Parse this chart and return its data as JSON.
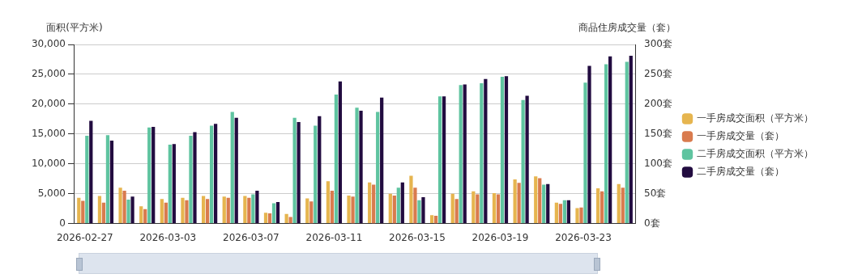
{
  "chart_data": {
    "type": "bar",
    "xlabel": null,
    "ylabel": "面积(平方米)",
    "y2label": "商品住房成交量（套）",
    "categories": [
      "2026-02-27",
      null,
      null,
      null,
      "2026-03-03",
      null,
      null,
      null,
      "2026-03-07",
      null,
      null,
      null,
      "2026-03-11",
      null,
      null,
      null,
      "2026-03-15",
      null,
      null,
      null,
      "2026-03-19",
      null,
      null,
      null,
      "2026-03-23",
      null,
      null
    ],
    "series": [
      {
        "name": "一手房成交面积（平方米）",
        "color": "#e6b54f",
        "values": [
          4300,
          4600,
          6000,
          2900,
          4100,
          4300,
          4600,
          4500,
          4600,
          1800,
          1600,
          4200,
          7100,
          4700,
          6900,
          5000,
          8000,
          1400,
          5000,
          5400,
          5100,
          7400,
          7900,
          3500,
          2600,
          5900,
          6600
        ]
      },
      {
        "name": "一手房成交量（套）",
        "color": "#d97b4e",
        "axis": "y2",
        "values": [
          38,
          35,
          55,
          24,
          35,
          39,
          41,
          43,
          43,
          17,
          11,
          37,
          55,
          45,
          65,
          47,
          60,
          13,
          41,
          49,
          49,
          68,
          76,
          33,
          27,
          54,
          60
        ]
      },
      {
        "name": "二手房成交面积（平方米）",
        "color": "#5fc4a0",
        "values": [
          14700,
          14800,
          4000,
          16100,
          13200,
          14700,
          16400,
          18700,
          4900,
          3400,
          17700,
          16400,
          21600,
          19400,
          18700,
          6000,
          3900,
          21300,
          23200,
          23500,
          24600,
          20700,
          6500,
          3900,
          23600,
          26700,
          27100
        ]
      },
      {
        "name": "二手房成交量（套）",
        "color": "#220c40",
        "axis": "y2",
        "values": [
          172,
          139,
          45,
          162,
          133,
          153,
          167,
          177,
          55,
          36,
          170,
          180,
          238,
          189,
          211,
          69,
          44,
          213,
          233,
          242,
          247,
          214,
          66,
          39,
          264,
          280,
          281
        ]
      }
    ],
    "ylim": [
      0,
      30000
    ],
    "yticks": [
      {
        "value": 0,
        "label": "0"
      },
      {
        "value": 5000,
        "label": "5,000"
      },
      {
        "value": 10000,
        "label": "10,000"
      },
      {
        "value": 15000,
        "label": "15,000"
      },
      {
        "value": 20000,
        "label": "20,000"
      },
      {
        "value": 25000,
        "label": "25,000"
      },
      {
        "value": 30000,
        "label": "30,000"
      }
    ],
    "y2lim": [
      0,
      300
    ],
    "y2ticks": [
      {
        "value": 0,
        "label": "0套"
      },
      {
        "value": 50,
        "label": "50套"
      },
      {
        "value": 100,
        "label": "100套"
      },
      {
        "value": 150,
        "label": "150套"
      },
      {
        "value": 200,
        "label": "200套"
      },
      {
        "value": 250,
        "label": "250套"
      },
      {
        "value": 300,
        "label": "300套"
      }
    ],
    "grid": "y",
    "legend": "right"
  }
}
